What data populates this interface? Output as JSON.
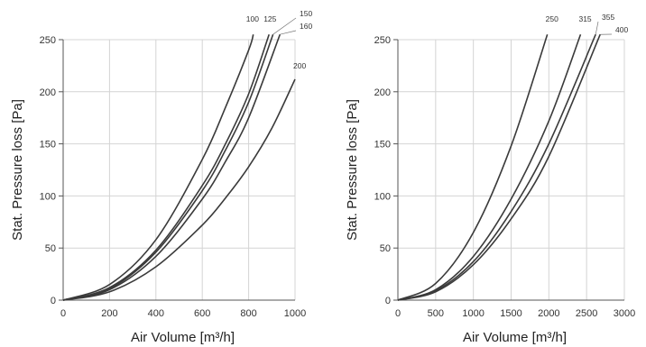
{
  "chart_data": [
    {
      "type": "line",
      "xlabel": "Air Volume [m³/h]",
      "ylabel": "Stat. Pressure loss [Pa]",
      "xlim": [
        0,
        1000
      ],
      "ylim": [
        0,
        250
      ],
      "xticks": [
        "0",
        "200",
        "400",
        "600",
        "800",
        "1000"
      ],
      "yticks": [
        "0",
        "50",
        "100",
        "150",
        "200",
        "250"
      ],
      "grid": true,
      "series": [
        {
          "name": "100",
          "x": [
            0,
            200,
            400,
            600,
            700,
            800,
            820
          ],
          "y": [
            0,
            15,
            58,
            135,
            185,
            240,
            255
          ]
        },
        {
          "name": "125",
          "x": [
            0,
            200,
            400,
            600,
            700,
            800,
            888
          ],
          "y": [
            0,
            12,
            48,
            110,
            150,
            198,
            255
          ]
        },
        {
          "name": "150",
          "x": [
            0,
            200,
            400,
            600,
            700,
            800,
            905
          ],
          "y": [
            0,
            11,
            46,
            105,
            144,
            190,
            255
          ]
        },
        {
          "name": "160",
          "x": [
            0,
            200,
            400,
            600,
            700,
            800,
            935
          ],
          "y": [
            0,
            10,
            42,
            97,
            133,
            175,
            255
          ]
        },
        {
          "name": "200",
          "x": [
            0,
            200,
            400,
            600,
            700,
            800,
            900,
            1000
          ],
          "y": [
            0,
            8,
            32,
            72,
            98,
            128,
            165,
            212
          ]
        }
      ]
    },
    {
      "type": "line",
      "xlabel": "Air Volume [m³/h]",
      "ylabel": "Stat. Pressure loss [Pa]",
      "xlim": [
        0,
        3000
      ],
      "ylim": [
        0,
        250
      ],
      "xticks": [
        "0",
        "500",
        "1000",
        "1500",
        "2000",
        "2500",
        "3000"
      ],
      "yticks": [
        "0",
        "50",
        "100",
        "150",
        "200",
        "250"
      ],
      "grid": true,
      "series": [
        {
          "name": "250",
          "x": [
            0,
            500,
            1000,
            1500,
            1980
          ],
          "y": [
            0,
            16,
            65,
            148,
            255
          ]
        },
        {
          "name": "315",
          "x": [
            0,
            500,
            1000,
            1500,
            2000,
            2420
          ],
          "y": [
            0,
            10,
            42,
            97,
            172,
            255
          ]
        },
        {
          "name": "355",
          "x": [
            0,
            500,
            1000,
            1500,
            2000,
            2620
          ],
          "y": [
            0,
            9,
            37,
            85,
            150,
            255
          ]
        },
        {
          "name": "400",
          "x": [
            0,
            500,
            1000,
            1500,
            2000,
            2680
          ],
          "y": [
            0,
            8,
            34,
            78,
            138,
            255
          ]
        }
      ]
    }
  ]
}
